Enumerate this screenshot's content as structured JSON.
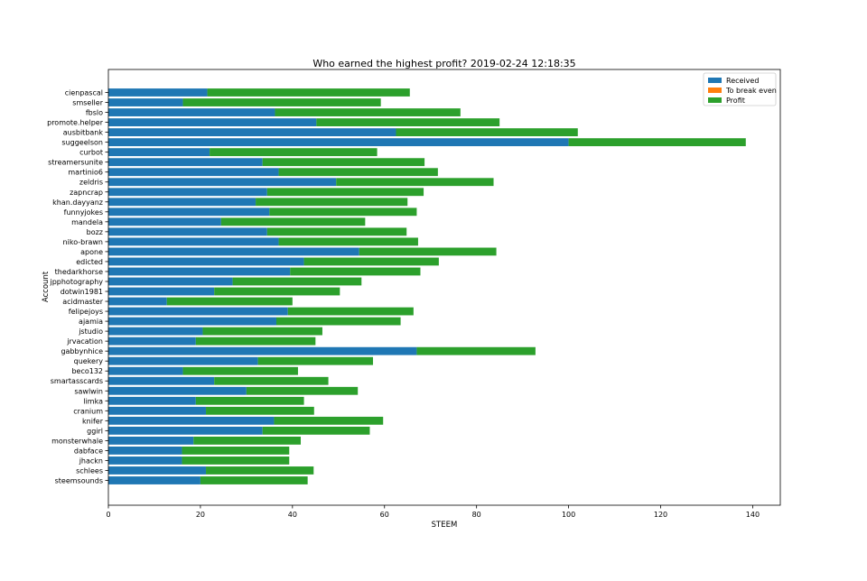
{
  "chart_data": {
    "type": "bar",
    "orientation": "horizontal",
    "stacked": true,
    "title": "Who earned the highest profit? 2019-02-24 12:18:35",
    "xlabel": "STEEM",
    "ylabel": "Account",
    "xlim": [
      0,
      146
    ],
    "xticks": [
      0,
      20,
      40,
      60,
      80,
      100,
      120,
      140
    ],
    "grid": false,
    "legend_position": "top-right",
    "categories": [
      "cienpascal",
      "smseller",
      "fbslo",
      "promote.helper",
      "ausbitbank",
      "suggeelson",
      "curbot",
      "streamersunite",
      "martinio6",
      "zeldris",
      "zapncrap",
      "khan.dayyanz",
      "funnyjokes",
      "mandela",
      "bozz",
      "niko-brawn",
      "apone",
      "edicted",
      "thedarkhorse",
      "jpphotography",
      "dotwin1981",
      "acidmaster",
      "felipejoys",
      "ajamia",
      "jstudio",
      "jrvacation",
      "gabbynhice",
      "quekery",
      "beco132",
      "smartasscards",
      "sawlwin",
      "limka",
      "cranium",
      "knifer",
      "ggirl",
      "monsterwhale",
      "dabface",
      "jhackn",
      "schlees",
      "steemsounds"
    ],
    "series": [
      {
        "name": "Received",
        "color": "#1f77b4",
        "values": [
          21.5,
          16.2,
          36.2,
          45.2,
          62.5,
          100.0,
          22.0,
          33.5,
          37.0,
          49.5,
          34.5,
          32.0,
          35.0,
          24.5,
          34.5,
          37.0,
          54.5,
          42.5,
          39.5,
          27.0,
          23.0,
          12.7,
          39.0,
          36.5,
          20.5,
          19.0,
          67.0,
          32.5,
          16.2,
          23.0,
          30.0,
          19.0,
          21.2,
          36.0,
          33.5,
          18.5,
          16.0,
          16.0,
          21.2,
          20.0
        ]
      },
      {
        "name": "To break even",
        "color": "#ff7f0e",
        "values": [
          0,
          0,
          0,
          0,
          0,
          0,
          0,
          0,
          0,
          0,
          0,
          0,
          0,
          0,
          0,
          0,
          0,
          0,
          0,
          0,
          0,
          0,
          0,
          0,
          0,
          0,
          0,
          0,
          0,
          0,
          0,
          0,
          0,
          0,
          0,
          0,
          0,
          0,
          0,
          0
        ]
      },
      {
        "name": "Profit",
        "color": "#2ca02c",
        "values": [
          44.0,
          43.0,
          40.3,
          39.8,
          39.5,
          38.5,
          36.4,
          35.2,
          34.6,
          34.2,
          34.0,
          33.0,
          32.0,
          31.3,
          30.3,
          30.3,
          29.8,
          29.3,
          28.3,
          28.0,
          27.3,
          27.3,
          27.3,
          27.0,
          26.0,
          26.0,
          25.8,
          25.0,
          25.0,
          24.8,
          24.2,
          23.5,
          23.5,
          23.7,
          23.3,
          23.3,
          23.3,
          23.3,
          23.4,
          23.3
        ]
      }
    ]
  }
}
